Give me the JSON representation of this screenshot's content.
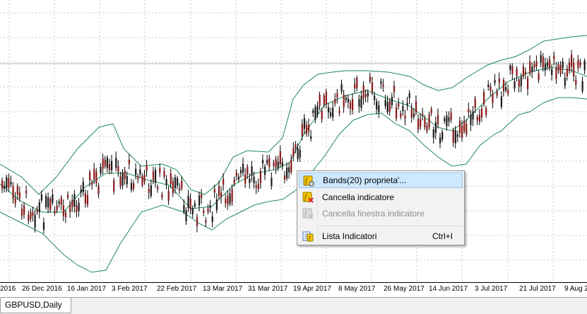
{
  "chart": {
    "symbol_tab": "GBPUSD,Daily",
    "background": "#ffffff",
    "grid_color": "#c8c8c8",
    "band_color": "#1f8a5a",
    "bull_color": "#1a1a1a",
    "bear_color": "#8b1a1a",
    "date_labels": [
      "2016",
      "26 Dec 2016",
      "16 Jan 2017",
      "3 Feb 2017",
      "22 Feb 2017",
      "13 Mar 2017",
      "31 Mar 2017",
      "19 Apr 2017",
      "8 May 2017",
      "26 May 2017",
      "14 Jun 2017",
      "3 Jul 2017",
      "21 Jul 2017",
      "9 Aug 2"
    ]
  },
  "context_menu": {
    "items": [
      {
        "label": "Bands(20) proprieta'...",
        "icon": "indicator-properties-icon",
        "shortcut": "",
        "enabled": true,
        "highlighted": true
      },
      {
        "label": "Cancella indicatore",
        "icon": "delete-indicator-icon",
        "shortcut": "",
        "enabled": true,
        "highlighted": false
      },
      {
        "label": "Cancella finestra indicatore",
        "icon": "delete-indicator-window-icon",
        "shortcut": "",
        "enabled": false,
        "highlighted": false
      },
      {
        "label": "Lista Indicatori",
        "icon": "indicators-list-icon",
        "shortcut": "Ctrl+I",
        "enabled": true,
        "highlighted": false
      }
    ]
  }
}
